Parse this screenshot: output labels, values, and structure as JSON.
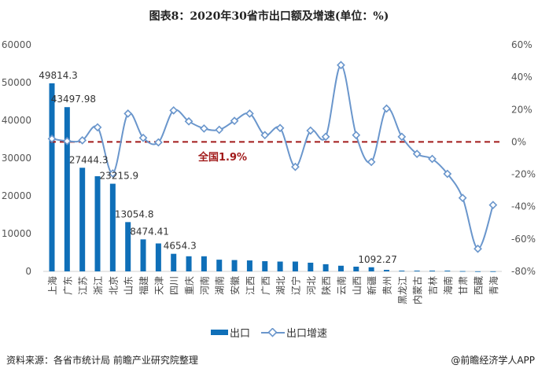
{
  "title": "图表8：2020年30省市出口额及增速(单位：%)",
  "chart_data": {
    "type": "bar+line",
    "title": "图表8：2020年30省市出口额及增速(单位：%)",
    "categories": [
      "上海",
      "广东",
      "江苏",
      "浙江",
      "北京",
      "山东",
      "福建",
      "天津",
      "四川",
      "重庆",
      "河南",
      "湖南",
      "安徽",
      "江西",
      "广西",
      "湖北",
      "辽宁",
      "河北",
      "陕西",
      "云南",
      "山西",
      "新疆",
      "贵州",
      "黑龙江",
      "内蒙古",
      "吉林",
      "海南",
      "甘肃",
      "西藏",
      "青海"
    ],
    "y_left": {
      "lim": [
        0,
        60000
      ],
      "ticks": [
        "0",
        "10000",
        "20000",
        "30000",
        "40000",
        "50000",
        "60000"
      ]
    },
    "y_right": {
      "lim": [
        -80,
        60
      ],
      "ticks": [
        "-80%",
        "-60%",
        "-40%",
        "-20%",
        "0%",
        "20%",
        "40%",
        "60%"
      ]
    },
    "series": [
      {
        "name": "出口",
        "type": "bar",
        "color": "#0f6fb8",
        "values": [
          49814.3,
          43497.98,
          27444.3,
          25200,
          23215.9,
          13054.8,
          8474.41,
          7400,
          4654.3,
          4000,
          4000,
          3100,
          3000,
          2900,
          2700,
          2600,
          2600,
          2300,
          1900,
          1500,
          1250,
          1092.27,
          400,
          200,
          200,
          200,
          200,
          80,
          30,
          30
        ]
      },
      {
        "name": "出口增速",
        "type": "line",
        "color": "#6a96cc",
        "unit": "%",
        "values": [
          2,
          0.5,
          1,
          9,
          -19.5,
          17.5,
          2.5,
          -0.3,
          19.5,
          12.7,
          8.3,
          7.5,
          13,
          17.5,
          4.2,
          8.6,
          -15.4,
          7,
          3.2,
          47.5,
          4.2,
          -12.4,
          20.6,
          3.2,
          -7.4,
          -10.5,
          -19.7,
          -34.6,
          -66,
          -39
        ]
      }
    ],
    "data_labels": [
      {
        "category": "上海",
        "text": "49814.3"
      },
      {
        "category": "广东",
        "text": "43497.98"
      },
      {
        "category": "江苏",
        "text": "27444.3"
      },
      {
        "category": "北京",
        "text": "23215.9"
      },
      {
        "category": "山东",
        "text": "13054.8"
      },
      {
        "category": "福建",
        "text": "8474.41"
      },
      {
        "category": "四川",
        "text": "4654.3"
      },
      {
        "category": "新疆",
        "text": "1092.27"
      }
    ],
    "reference_line": {
      "value": 1.9,
      "label": "全国1.9%",
      "color": "#a11a1a"
    },
    "legend": {
      "position": "bottom",
      "items": [
        "出口",
        "出口增速"
      ]
    },
    "grid": false
  },
  "footer": {
    "source": "资料来源：各省市统计局 前瞻产业研究院整理",
    "credit": "@前瞻经济学人APP"
  }
}
